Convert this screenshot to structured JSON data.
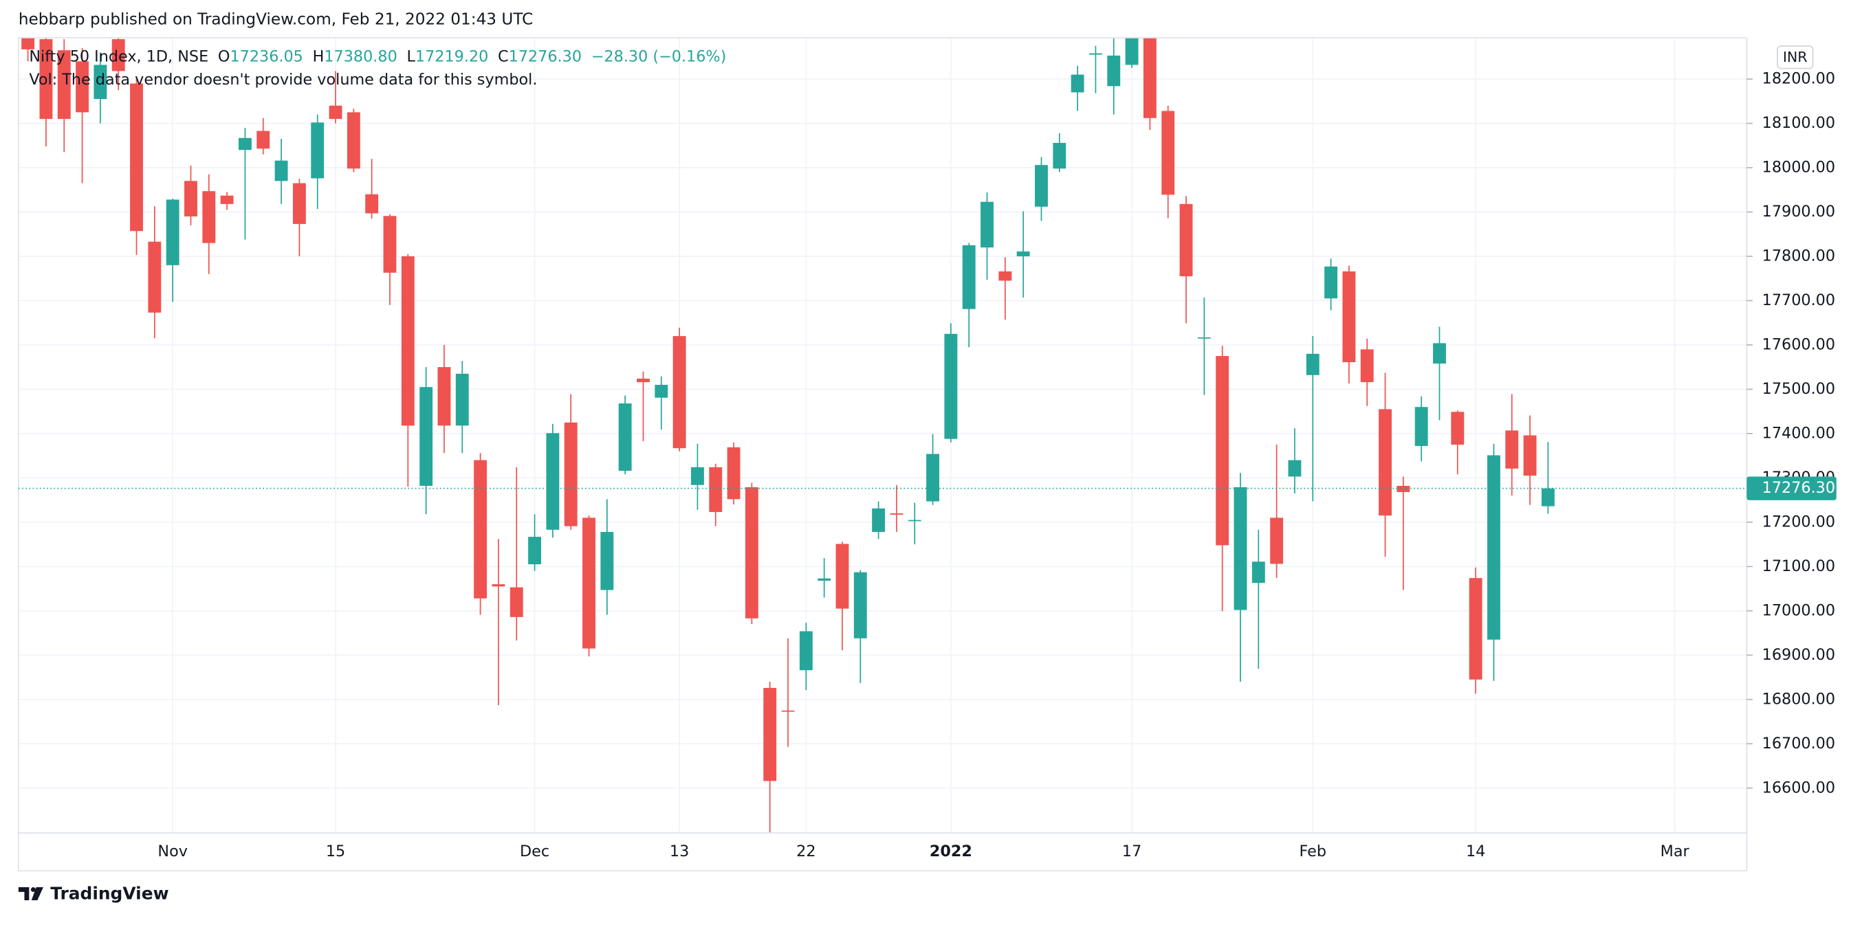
{
  "header": {
    "published": "hebbarp published on TradingView.com, Feb 21, 2022 01:43 UTC",
    "symbol": "Nifty 50 Index, 1D, NSE",
    "ohlc": [
      {
        "key": "O",
        "value": "17236.05"
      },
      {
        "key": "H",
        "value": "17380.80"
      },
      {
        "key": "L",
        "value": "17219.20"
      },
      {
        "key": "C",
        "value": "17276.30"
      }
    ],
    "change": "−28.30 (−0.16%)",
    "volume_note": "Vol: The data vendor doesn't provide volume data for this symbol.",
    "currency": "INR"
  },
  "footer": {
    "brand": "TradingView"
  },
  "chart_data": {
    "type": "candlestick",
    "up_color": "#26a69a",
    "down_color": "#ef5350",
    "grid": true,
    "categories": [
      null,
      null,
      null,
      null,
      null,
      null,
      null,
      null,
      "Nov",
      null,
      null,
      null,
      null,
      null,
      null,
      null,
      null,
      "15",
      null,
      null,
      null,
      null,
      null,
      null,
      null,
      null,
      null,
      null,
      "Dec",
      null,
      null,
      null,
      null,
      null,
      null,
      null,
      "13",
      null,
      null,
      null,
      null,
      null,
      null,
      "22",
      null,
      null,
      null,
      null,
      null,
      null,
      null,
      "2022",
      null,
      null,
      null,
      null,
      null,
      null,
      null,
      null,
      null,
      "17",
      null,
      null,
      null,
      null,
      null,
      null,
      null,
      null,
      null,
      "Feb",
      null,
      null,
      null,
      null,
      null,
      null,
      null,
      null,
      "14",
      null,
      null,
      null,
      null,
      null,
      null,
      null,
      null,
      null,
      null,
      "Mar"
    ],
    "open": [
      18293,
      18290,
      18265,
      18240,
      18155,
      18290,
      18190,
      17833,
      17780,
      17970,
      17947,
      17937,
      18040,
      18083,
      17970,
      17965,
      17976,
      18140,
      18125,
      17940,
      17891,
      17800,
      17282,
      17550,
      17418,
      17340,
      17060,
      17053,
      17105,
      17183,
      17425,
      17210,
      17047,
      17316,
      17524,
      17481,
      17620,
      17284,
      17324,
      17369,
      17279,
      16826,
      16775,
      16866,
      17068,
      17151,
      16938,
      17178,
      17220,
      17203,
      17247,
      17388,
      17681,
      17820,
      17766,
      17800,
      17912,
      17998,
      18170,
      18255,
      18184,
      18232,
      18308,
      18128,
      17918,
      17615,
      17575,
      17002,
      17063,
      17210,
      17303,
      17532,
      17705,
      17766,
      17590,
      17455,
      17282,
      17372,
      17558,
      17449,
      17074,
      16935,
      17407,
      17396,
      17236.05,
      null,
      null,
      null,
      null,
      null,
      null,
      null
    ],
    "high": [
      18310,
      18300,
      18290,
      18270,
      18260,
      18300,
      18200,
      17913,
      17930,
      18005,
      17985,
      17945,
      18090,
      18112,
      18065,
      17975,
      18120,
      18218,
      18133,
      18020,
      17895,
      17805,
      17550,
      17600,
      17564,
      17356,
      17162,
      17324,
      17218,
      17422,
      17489,
      17215,
      17252,
      17486,
      17540,
      17529,
      17639,
      17377,
      17332,
      17380,
      17289,
      16840,
      16938,
      16973,
      17119,
      17156,
      17092,
      17247,
      17284,
      17244,
      17399,
      17649,
      17830,
      17944,
      17798,
      17902,
      18024,
      18078,
      18230,
      18275,
      18293,
      18350,
      18330,
      18140,
      17936,
      17707,
      17598,
      17311,
      17183,
      17375,
      17412,
      17620,
      17795,
      17779,
      17614,
      17537,
      17303,
      17484,
      17641,
      17452,
      17098,
      17377,
      17489,
      17441,
      17380.8,
      null,
      null,
      null,
      null,
      null,
      null,
      null
    ],
    "low": [
      18240,
      18048,
      18035,
      17965,
      18100,
      18175,
      17803,
      17615,
      17697,
      17870,
      17760,
      17905,
      17838,
      18030,
      17918,
      17800,
      17907,
      18100,
      17990,
      17885,
      17690,
      17280,
      17218,
      17356,
      17356,
      16991,
      16787,
      16933,
      17090,
      17165,
      17183,
      16897,
      16991,
      17308,
      17383,
      17409,
      17360,
      17228,
      17191,
      17240,
      16970,
      16499,
      16693,
      16821,
      17030,
      16911,
      16837,
      17162,
      17178,
      17150,
      17239,
      17380,
      17595,
      17747,
      17657,
      17707,
      17880,
      17990,
      18128,
      18168,
      18120,
      18225,
      18085,
      17886,
      17649,
      17487,
      16999,
      16840,
      16869,
      17074,
      17265,
      17247,
      17678,
      17513,
      17462,
      17122,
      17047,
      17337,
      17430,
      17308,
      16813,
      16842,
      17260,
      17239,
      17219.2,
      null,
      null,
      null,
      null,
      null,
      null,
      null
    ],
    "close": [
      18267,
      18110,
      18110,
      18125,
      18232,
      18218,
      17857,
      17673,
      17928,
      17890,
      17830,
      17918,
      18067,
      18043,
      18016,
      17873,
      18102,
      18110,
      17998,
      17897,
      17763,
      17418,
      17505,
      17418,
      17535,
      17028,
      17055,
      16986,
      17167,
      17401,
      17191,
      16915,
      17178,
      17468,
      17516,
      17510,
      17367,
      17324,
      17223,
      17252,
      16983,
      16616,
      16773,
      16954,
      17073,
      17005,
      17087,
      17231,
      17217,
      17205,
      17354,
      17625,
      17825,
      17923,
      17745,
      17811,
      18006,
      18056,
      18210,
      18258,
      18253,
      18308,
      18112,
      17939,
      17755,
      17617,
      17148,
      17279,
      17111,
      17106,
      17340,
      17580,
      17777,
      17561,
      17516,
      17215,
      17268,
      17460,
      17604,
      17375,
      16845,
      17351,
      17321,
      17305,
      17276.3,
      null,
      null,
      null,
      null,
      null,
      null,
      null
    ],
    "ylim": [
      16498.7,
      18293.2
    ],
    "yticks": [
      {
        "value": 16600,
        "label": "16600.00"
      },
      {
        "value": 16700,
        "label": "16700.00"
      },
      {
        "value": 16800,
        "label": "16800.00"
      },
      {
        "value": 16900,
        "label": "16900.00"
      },
      {
        "value": 17000,
        "label": "17000.00"
      },
      {
        "value": 17100,
        "label": "17100.00"
      },
      {
        "value": 17200,
        "label": "17200.00"
      },
      {
        "value": 17300,
        "label": "17300.00"
      },
      {
        "value": 17400,
        "label": "17400.00"
      },
      {
        "value": 17500,
        "label": "17500.00"
      },
      {
        "value": 17600,
        "label": "17600.00"
      },
      {
        "value": 17700,
        "label": "17700.00"
      },
      {
        "value": 17800,
        "label": "17800.00"
      },
      {
        "value": 17900,
        "label": "17900.00"
      },
      {
        "value": 18000,
        "label": "18000.00"
      },
      {
        "value": 18100,
        "label": "18100.00"
      },
      {
        "value": 18200,
        "label": "18200.00"
      }
    ],
    "last_price": {
      "value": 17276.3,
      "label": "17276.30"
    }
  }
}
